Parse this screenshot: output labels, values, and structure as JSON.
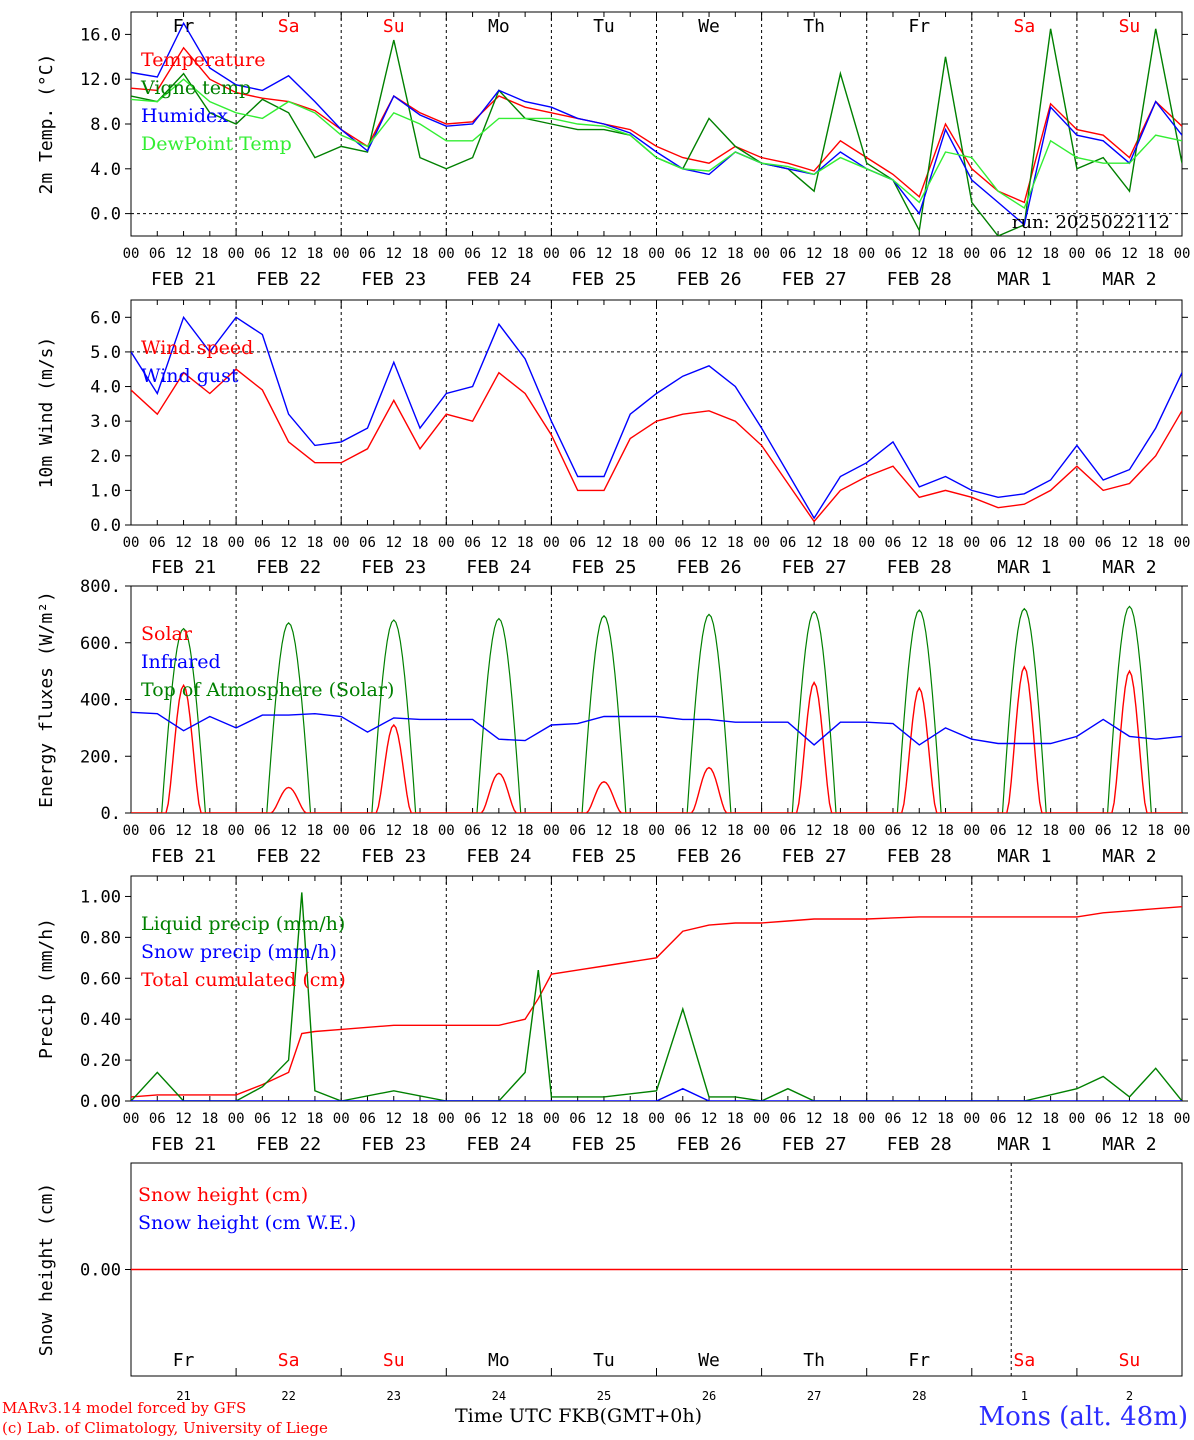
{
  "colors": {
    "red": "#ff0000",
    "green": "#008000",
    "blue": "#0000ff",
    "lightgreen": "#33ee33",
    "weekend": "#ff0000",
    "text": "#000000"
  },
  "days": {
    "abbr": [
      "Fr",
      "Sa",
      "Su",
      "Mo",
      "Tu",
      "We",
      "Th",
      "Fr",
      "Sa",
      "Su"
    ],
    "weekend": [
      false,
      true,
      true,
      false,
      false,
      false,
      false,
      false,
      true,
      true
    ],
    "date_labels": [
      "FEB 21",
      "FEB 22",
      "FEB 23",
      "FEB 24",
      "FEB 25",
      "FEB 26",
      "FEB 27",
      "FEB 28",
      "MAR 1",
      "MAR 2"
    ],
    "day_numbers": [
      "21",
      "22",
      "23",
      "24",
      "25",
      "26",
      "27",
      "28",
      "1",
      "2"
    ],
    "hour_ticks": [
      "00",
      "06",
      "12",
      "18"
    ],
    "final_tick": "00"
  },
  "footer": {
    "credit_line1": "MARv3.14 model forced by GFS",
    "credit_line2": "(c) Lab. of Climatology, University of Liege",
    "xaxis_label_a": "Time UTC",
    "xaxis_label_b": "FKB(GMT+0h)",
    "station": "Mons (alt. 48m)"
  },
  "chart_data": [
    {
      "type": "line",
      "ylabel": "2m Temp. (°C)",
      "ylim": [
        -2,
        18
      ],
      "yticks": [
        0,
        4,
        8,
        12,
        16
      ],
      "ytick_labels": [
        "0.0",
        "4.0",
        "8.0",
        "12.0",
        "16.0"
      ],
      "ref_line": 0,
      "show_day_abbr": true,
      "annotation": "run: 2025022112",
      "legend": [
        {
          "label": "Temperature",
          "color": "#ff0000"
        },
        {
          "label": "Vigne temp",
          "color": "#008000"
        },
        {
          "label": "Humidex",
          "color": "#0000ff"
        },
        {
          "label": "DewPoint Temp",
          "color": "#33ee33"
        }
      ],
      "x_hours": [
        0,
        6,
        12,
        18,
        24,
        30,
        36,
        42,
        48,
        54,
        60,
        66,
        72,
        78,
        84,
        90,
        96,
        102,
        108,
        114,
        120,
        126,
        132,
        138,
        144,
        150,
        156,
        162,
        168,
        174,
        180,
        186,
        192,
        198,
        204,
        210,
        216,
        222,
        228,
        234,
        240
      ],
      "series": [
        {
          "name": "Temperature",
          "color": "#ff0000",
          "values": [
            11.2,
            11.0,
            14.8,
            12.0,
            10.8,
            10.3,
            10.0,
            9.2,
            7.5,
            6.0,
            10.5,
            9.0,
            8.0,
            8.2,
            10.5,
            9.5,
            9.0,
            8.5,
            8.0,
            7.5,
            6.0,
            5.0,
            4.5,
            6.0,
            5.0,
            4.5,
            3.8,
            6.5,
            5.0,
            3.5,
            1.5,
            8.0,
            4.0,
            2.0,
            1.0,
            9.8,
            7.5,
            7.0,
            5.0,
            10.0,
            7.8
          ]
        },
        {
          "name": "Vigne temp",
          "color": "#008000",
          "values": [
            10.5,
            10.0,
            12.5,
            9.0,
            8.0,
            10.2,
            9.0,
            5.0,
            6.0,
            5.5,
            15.5,
            5.0,
            4.0,
            5.0,
            11.0,
            8.5,
            8.0,
            7.5,
            7.5,
            7.0,
            5.0,
            4.0,
            8.5,
            6.0,
            4.5,
            4.0,
            2.0,
            12.5,
            4.5,
            3.0,
            -1.5,
            14.0,
            1.0,
            -2.0,
            -1.0,
            16.5,
            4.0,
            5.0,
            2.0,
            16.5,
            4.5
          ]
        },
        {
          "name": "Humidex",
          "color": "#0000ff",
          "values": [
            12.6,
            12.2,
            17.0,
            13.0,
            11.5,
            11.0,
            12.3,
            10.0,
            7.5,
            5.6,
            10.5,
            8.8,
            7.8,
            8.0,
            11.0,
            10.0,
            9.5,
            8.5,
            8.0,
            7.2,
            5.5,
            4.0,
            3.5,
            5.5,
            4.5,
            4.0,
            3.5,
            5.5,
            4.0,
            3.0,
            0.0,
            7.5,
            3.0,
            1.0,
            -1.0,
            9.5,
            7.0,
            6.5,
            4.5,
            10.0,
            7.0
          ]
        },
        {
          "name": "DewPoint Temp",
          "color": "#33ee33",
          "values": [
            10.2,
            10.0,
            12.0,
            10.0,
            9.0,
            8.5,
            10.0,
            9.0,
            7.0,
            6.0,
            9.0,
            8.0,
            6.5,
            6.5,
            8.5,
            8.5,
            8.5,
            8.0,
            7.8,
            7.0,
            5.0,
            4.0,
            3.8,
            5.5,
            4.5,
            4.2,
            3.5,
            5.0,
            4.0,
            3.0,
            1.0,
            5.5,
            5.0,
            2.0,
            0.5,
            6.5,
            5.0,
            4.5,
            4.5,
            7.0,
            6.5
          ]
        }
      ]
    },
    {
      "type": "line",
      "ylabel": "10m Wind (m/s)",
      "ylim": [
        0,
        6.5
      ],
      "yticks": [
        0,
        1,
        2,
        3,
        4,
        5,
        6
      ],
      "ytick_labels": [
        "0.0",
        "1.0",
        "2.0",
        "3.0",
        "4.0",
        "5.0",
        "6.0"
      ],
      "ref_line": 5,
      "legend": [
        {
          "label": "Wind speed",
          "color": "#ff0000"
        },
        {
          "label": "Wind gust",
          "color": "#0000ff"
        }
      ],
      "x_hours": [
        0,
        6,
        12,
        18,
        24,
        30,
        36,
        42,
        48,
        54,
        60,
        66,
        72,
        78,
        84,
        90,
        96,
        102,
        108,
        114,
        120,
        126,
        132,
        138,
        144,
        150,
        156,
        162,
        168,
        174,
        180,
        186,
        192,
        198,
        204,
        210,
        216,
        222,
        228,
        234,
        240
      ],
      "series": [
        {
          "name": "Wind speed",
          "color": "#ff0000",
          "values": [
            3.9,
            3.2,
            4.4,
            3.8,
            4.5,
            3.9,
            2.4,
            1.8,
            1.8,
            2.2,
            3.6,
            2.2,
            3.2,
            3.0,
            4.4,
            3.8,
            2.6,
            1.0,
            1.0,
            2.5,
            3.0,
            3.2,
            3.3,
            3.0,
            2.3,
            1.2,
            0.1,
            1.0,
            1.4,
            1.7,
            0.8,
            1.0,
            0.8,
            0.5,
            0.6,
            1.0,
            1.7,
            1.0,
            1.2,
            2.0,
            3.3
          ]
        },
        {
          "name": "Wind gust",
          "color": "#0000ff",
          "values": [
            5.0,
            3.8,
            6.0,
            5.0,
            6.0,
            5.5,
            3.2,
            2.3,
            2.4,
            2.8,
            4.7,
            2.8,
            3.8,
            4.0,
            5.8,
            4.8,
            3.0,
            1.4,
            1.4,
            3.2,
            3.8,
            4.3,
            4.6,
            4.0,
            2.8,
            1.5,
            0.2,
            1.4,
            1.8,
            2.4,
            1.1,
            1.4,
            1.0,
            0.8,
            0.9,
            1.3,
            2.3,
            1.3,
            1.6,
            2.8,
            4.4
          ]
        }
      ]
    },
    {
      "type": "line",
      "ylabel": "Energy fluxes (W/m²)",
      "ylim": [
        0,
        800
      ],
      "yticks": [
        0,
        200,
        400,
        600,
        800
      ],
      "ytick_labels": [
        "0.",
        "200.",
        "400.",
        "600.",
        "800."
      ],
      "legend": [
        {
          "label": "Solar",
          "color": "#ff0000"
        },
        {
          "label": "Infrared",
          "color": "#0000ff"
        },
        {
          "label": "Top of Atmosphere (Solar)",
          "color": "#008000"
        }
      ],
      "toa_peaks": [
        650,
        670,
        680,
        685,
        695,
        700,
        710,
        715,
        720,
        728
      ],
      "solar_peaks": [
        450,
        90,
        310,
        140,
        110,
        160,
        460,
        440,
        515,
        500
      ],
      "x_hours": [
        0,
        6,
        12,
        18,
        24,
        30,
        36,
        42,
        48,
        54,
        60,
        66,
        72,
        78,
        84,
        90,
        96,
        102,
        108,
        114,
        120,
        126,
        132,
        138,
        144,
        150,
        156,
        162,
        168,
        174,
        180,
        186,
        192,
        198,
        204,
        210,
        216,
        222,
        228,
        234,
        240
      ],
      "series": [
        {
          "name": "Infrared",
          "color": "#0000ff",
          "values": [
            355,
            350,
            290,
            340,
            300,
            345,
            345,
            350,
            340,
            285,
            335,
            330,
            330,
            330,
            260,
            255,
            310,
            315,
            340,
            340,
            340,
            330,
            330,
            320,
            320,
            320,
            240,
            320,
            320,
            315,
            240,
            300,
            260,
            245,
            245,
            245,
            270,
            330,
            270,
            260,
            270
          ]
        }
      ]
    },
    {
      "type": "line",
      "ylabel": "Precip (mm/h)",
      "ylim": [
        0,
        1.1
      ],
      "yticks": [
        0,
        0.2,
        0.4,
        0.6,
        0.8,
        1.0
      ],
      "ytick_labels": [
        "0.00",
        "0.20",
        "0.40",
        "0.60",
        "0.80",
        "1.00"
      ],
      "legend": [
        {
          "label": "Liquid precip (mm/h)",
          "color": "#008000"
        },
        {
          "label": "Snow precip (mm/h)",
          "color": "#0000ff"
        },
        {
          "label": "Total cumulated (cm)",
          "color": "#ff0000"
        }
      ],
      "x_hours": [
        0,
        6,
        12,
        18,
        24,
        30,
        36,
        39,
        42,
        48,
        60,
        72,
        84,
        90,
        93,
        96,
        102,
        108,
        120,
        126,
        132,
        138,
        144,
        150,
        156,
        168,
        180,
        192,
        204,
        216,
        222,
        228,
        234,
        240
      ],
      "series": [
        {
          "name": "Total cumulated (cm)",
          "color": "#ff0000",
          "values": [
            0.02,
            0.03,
            0.03,
            0.03,
            0.03,
            0.08,
            0.14,
            0.33,
            0.34,
            0.35,
            0.37,
            0.37,
            0.37,
            0.4,
            0.5,
            0.62,
            0.64,
            0.66,
            0.7,
            0.83,
            0.86,
            0.87,
            0.87,
            0.88,
            0.89,
            0.89,
            0.9,
            0.9,
            0.9,
            0.9,
            0.92,
            0.93,
            0.94,
            0.95
          ]
        },
        {
          "name": "Liquid precip (mm/h)",
          "color": "#008000",
          "values": [
            0.0,
            0.14,
            0.0,
            0.0,
            0.0,
            0.07,
            0.2,
            1.02,
            0.05,
            0.0,
            0.05,
            0.0,
            0.0,
            0.14,
            0.64,
            0.02,
            0.02,
            0.02,
            0.05,
            0.45,
            0.02,
            0.02,
            0.0,
            0.06,
            0.0,
            0.0,
            0.0,
            0.0,
            0.0,
            0.06,
            0.12,
            0.02,
            0.16,
            0.0
          ]
        },
        {
          "name": "Snow precip (mm/h)",
          "color": "#0000ff",
          "values": [
            0,
            0,
            0,
            0,
            0,
            0,
            0,
            0,
            0,
            0,
            0,
            0,
            0,
            0,
            0,
            0,
            0,
            0,
            0,
            0.06,
            0,
            0,
            0,
            0,
            0,
            0,
            0,
            0,
            0,
            0,
            0,
            0,
            0,
            0
          ]
        }
      ]
    },
    {
      "type": "line",
      "ylabel": "Snow height (cm)",
      "ylim": [
        -1,
        1
      ],
      "yticks": [
        0
      ],
      "ytick_labels": [
        "0.00"
      ],
      "legend": [
        {
          "label": "Snow height (cm)",
          "color": "#ff0000"
        },
        {
          "label": "Snow height (cm W.E.)",
          "color": "#0000ff"
        }
      ],
      "x_hours": [
        0,
        240
      ],
      "series": [
        {
          "name": "Snow height (cm)",
          "color": "#ff0000",
          "values": [
            0,
            0
          ]
        }
      ]
    }
  ]
}
